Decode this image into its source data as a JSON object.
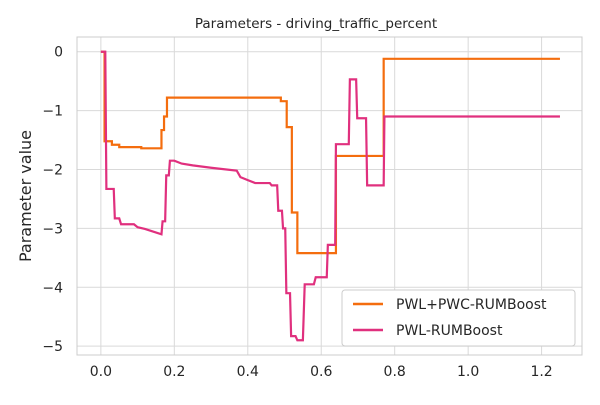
{
  "chart_data": {
    "type": "line",
    "title": "Parameters - driving_traffic_percent",
    "xlabel": "",
    "ylabel": "Parameter value",
    "xlim": [
      -0.065,
      1.31
    ],
    "ylim": [
      -5.15,
      0.25
    ],
    "xticks": [
      "0.0",
      "0.2",
      "0.4",
      "0.6",
      "0.8",
      "1.0",
      "1.2"
    ],
    "xtick_values": [
      0.0,
      0.2,
      0.4,
      0.6,
      0.8,
      1.0,
      1.2
    ],
    "yticks": [
      "0",
      "−1",
      "−2",
      "−3",
      "−4",
      "−5"
    ],
    "ytick_values": [
      0,
      -1,
      -2,
      -3,
      -4,
      -5
    ],
    "grid": true,
    "legend_position": "lower-right",
    "series": [
      {
        "name": "PWL+PWC-RUMBoost",
        "color": "#f46d0e",
        "points": [
          [
            0.0,
            0.0
          ],
          [
            0.01,
            0.0
          ],
          [
            0.01,
            -1.52
          ],
          [
            0.03,
            -1.52
          ],
          [
            0.03,
            -1.58
          ],
          [
            0.05,
            -1.58
          ],
          [
            0.05,
            -1.62
          ],
          [
            0.11,
            -1.62
          ],
          [
            0.11,
            -1.64
          ],
          [
            0.165,
            -1.64
          ],
          [
            0.165,
            -1.33
          ],
          [
            0.172,
            -1.33
          ],
          [
            0.172,
            -1.1
          ],
          [
            0.18,
            -1.1
          ],
          [
            0.18,
            -0.78
          ],
          [
            0.49,
            -0.78
          ],
          [
            0.49,
            -0.84
          ],
          [
            0.506,
            -0.84
          ],
          [
            0.506,
            -1.28
          ],
          [
            0.52,
            -1.28
          ],
          [
            0.52,
            -2.73
          ],
          [
            0.535,
            -2.73
          ],
          [
            0.535,
            -3.42
          ],
          [
            0.64,
            -3.42
          ],
          [
            0.64,
            -1.77
          ],
          [
            0.77,
            -1.77
          ],
          [
            0.77,
            -0.12
          ],
          [
            1.25,
            -0.12
          ]
        ]
      },
      {
        "name": "PWL-RUMBoost",
        "color": "#e0307e",
        "points": [
          [
            0.0,
            0.0
          ],
          [
            0.012,
            0.0
          ],
          [
            0.015,
            -2.33
          ],
          [
            0.035,
            -2.33
          ],
          [
            0.038,
            -2.83
          ],
          [
            0.05,
            -2.83
          ],
          [
            0.055,
            -2.93
          ],
          [
            0.09,
            -2.93
          ],
          [
            0.1,
            -2.98
          ],
          [
            0.12,
            -3.01
          ],
          [
            0.14,
            -3.05
          ],
          [
            0.165,
            -3.1
          ],
          [
            0.168,
            -2.88
          ],
          [
            0.175,
            -2.88
          ],
          [
            0.178,
            -2.1
          ],
          [
            0.185,
            -2.1
          ],
          [
            0.188,
            -1.85
          ],
          [
            0.2,
            -1.85
          ],
          [
            0.22,
            -1.9
          ],
          [
            0.25,
            -1.93
          ],
          [
            0.3,
            -1.97
          ],
          [
            0.37,
            -2.02
          ],
          [
            0.38,
            -2.13
          ],
          [
            0.4,
            -2.18
          ],
          [
            0.42,
            -2.23
          ],
          [
            0.46,
            -2.23
          ],
          [
            0.465,
            -2.27
          ],
          [
            0.48,
            -2.27
          ],
          [
            0.483,
            -2.7
          ],
          [
            0.493,
            -2.7
          ],
          [
            0.496,
            -3.0
          ],
          [
            0.502,
            -3.0
          ],
          [
            0.505,
            -4.1
          ],
          [
            0.515,
            -4.1
          ],
          [
            0.518,
            -4.83
          ],
          [
            0.53,
            -4.83
          ],
          [
            0.535,
            -4.9
          ],
          [
            0.55,
            -4.9
          ],
          [
            0.555,
            -3.95
          ],
          [
            0.58,
            -3.95
          ],
          [
            0.585,
            -3.83
          ],
          [
            0.615,
            -3.83
          ],
          [
            0.618,
            -3.28
          ],
          [
            0.638,
            -3.28
          ],
          [
            0.64,
            -1.57
          ],
          [
            0.675,
            -1.57
          ],
          [
            0.678,
            -0.47
          ],
          [
            0.695,
            -0.47
          ],
          [
            0.698,
            -1.13
          ],
          [
            0.722,
            -1.13
          ],
          [
            0.725,
            -2.27
          ],
          [
            0.77,
            -2.27
          ],
          [
            0.772,
            -1.1
          ],
          [
            1.25,
            -1.1
          ]
        ]
      }
    ]
  }
}
